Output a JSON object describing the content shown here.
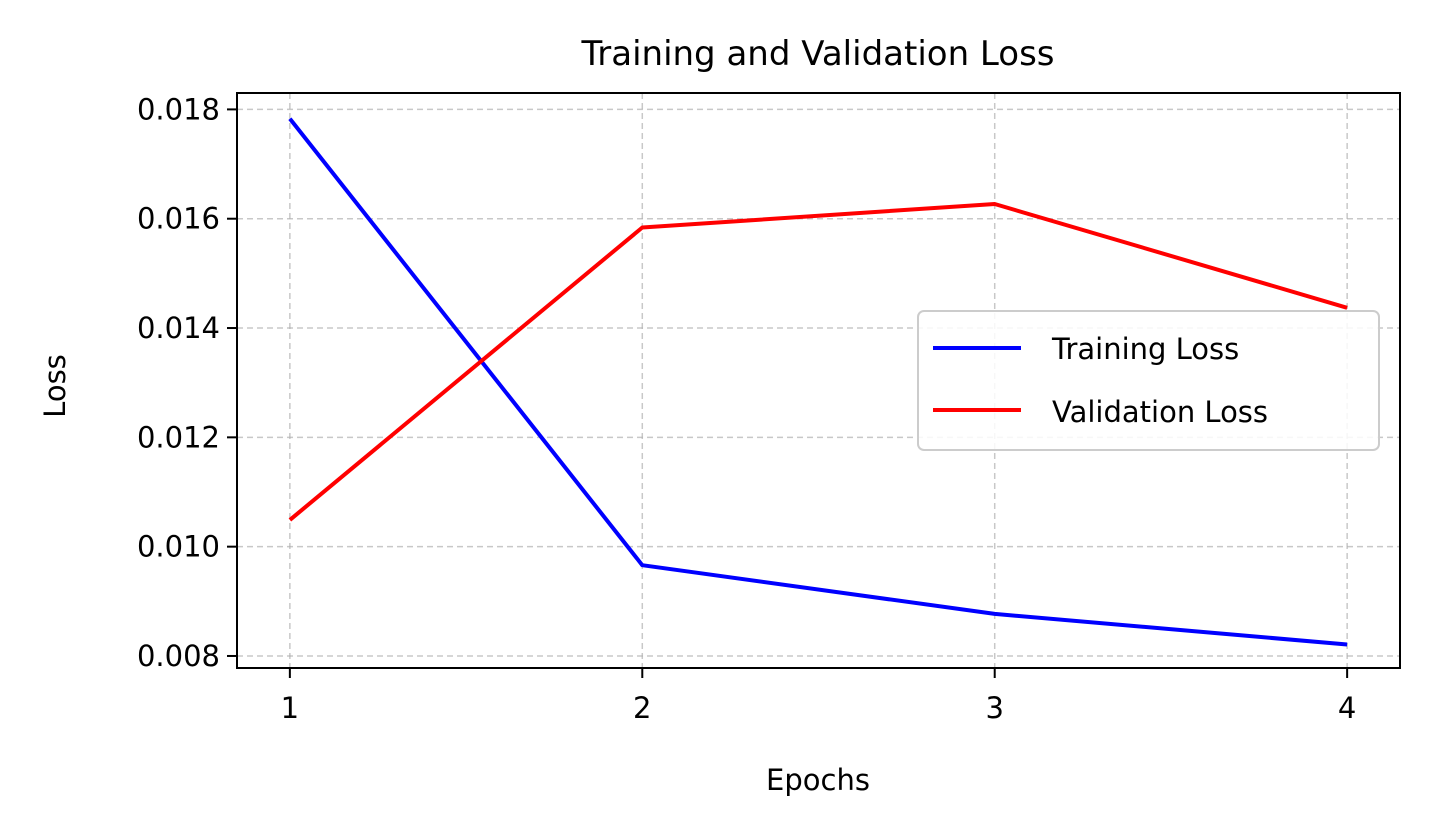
{
  "chart_data": {
    "type": "line",
    "title": "Training and Validation Loss",
    "xlabel": "Epochs",
    "ylabel": "Loss",
    "x": [
      1,
      2,
      3,
      4
    ],
    "x_ticks": [
      "1",
      "2",
      "3",
      "4"
    ],
    "y_ticks": [
      "0.008",
      "0.010",
      "0.012",
      "0.014",
      "0.016",
      "0.018"
    ],
    "y_tick_values": [
      0.008,
      0.01,
      0.012,
      0.014,
      0.016,
      0.018
    ],
    "xlim": [
      0.85,
      4.15
    ],
    "ylim": [
      0.00778,
      0.0183
    ],
    "grid": true,
    "legend_position": "center-right",
    "series": [
      {
        "name": "Training Loss",
        "color": "#0000ff",
        "values": [
          0.01783,
          0.00966,
          0.00877,
          0.00821
        ]
      },
      {
        "name": "Validation Loss",
        "color": "#ff0000",
        "values": [
          0.01049,
          0.01584,
          0.01627,
          0.01437
        ]
      }
    ]
  }
}
